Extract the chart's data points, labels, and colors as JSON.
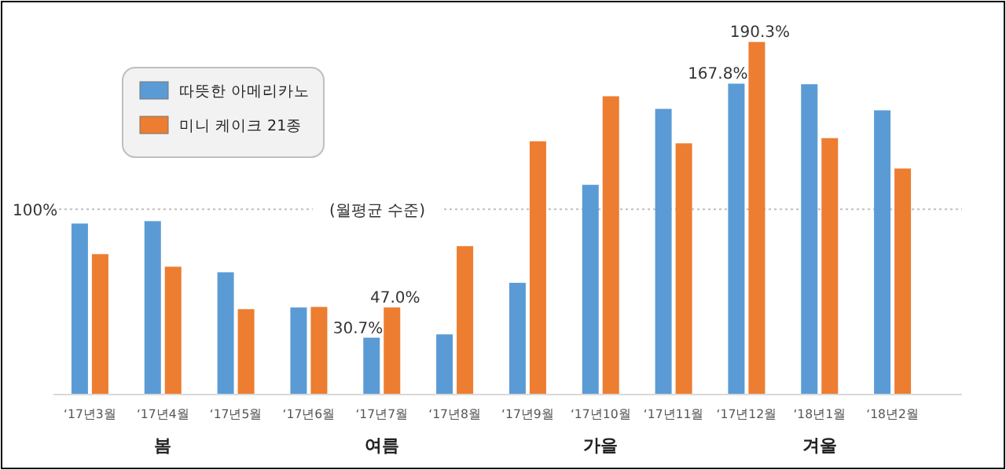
{
  "chart_data": {
    "type": "bar",
    "categories": [
      "‘17년3월",
      "‘17년4월",
      "‘17년5월",
      "‘17년6월",
      "‘17년7월",
      "‘17년8월",
      "‘17년9월",
      "‘17년10월",
      "‘17년11월",
      "‘17년12월",
      "‘18년1월",
      "‘18년2월"
    ],
    "series": [
      {
        "name": "따뜻한 아메리카노",
        "color": "#5b9bd5",
        "values": [
          92.3,
          93.6,
          66.0,
          47.0,
          30.7,
          32.5,
          60.3,
          113.2,
          154.2,
          167.8,
          167.5,
          153.4
        ],
        "value_labels": [
          null,
          null,
          null,
          null,
          "30.7%",
          null,
          null,
          null,
          null,
          "167.8%",
          null,
          null
        ]
      },
      {
        "name": "미니 케이크 21종",
        "color": "#ed7d31",
        "values": [
          75.8,
          69.0,
          46.1,
          47.3,
          47.0,
          80.1,
          136.7,
          161.0,
          135.6,
          190.3,
          138.4,
          122.0
        ],
        "value_labels": [
          null,
          null,
          null,
          null,
          "47.0%",
          null,
          null,
          null,
          null,
          "190.3%",
          null,
          null
        ]
      }
    ],
    "ref_lines": [
      {
        "axis": "y",
        "value": 100,
        "label": "100%",
        "color": "#bfbfbf",
        "line_style": "dotted"
      }
    ],
    "annotations": [
      {
        "text": "(월평균 수준)",
        "y": 100
      },
      "봄",
      "여름",
      "가을",
      "겨울"
    ],
    "legend": "top left"
  }
}
